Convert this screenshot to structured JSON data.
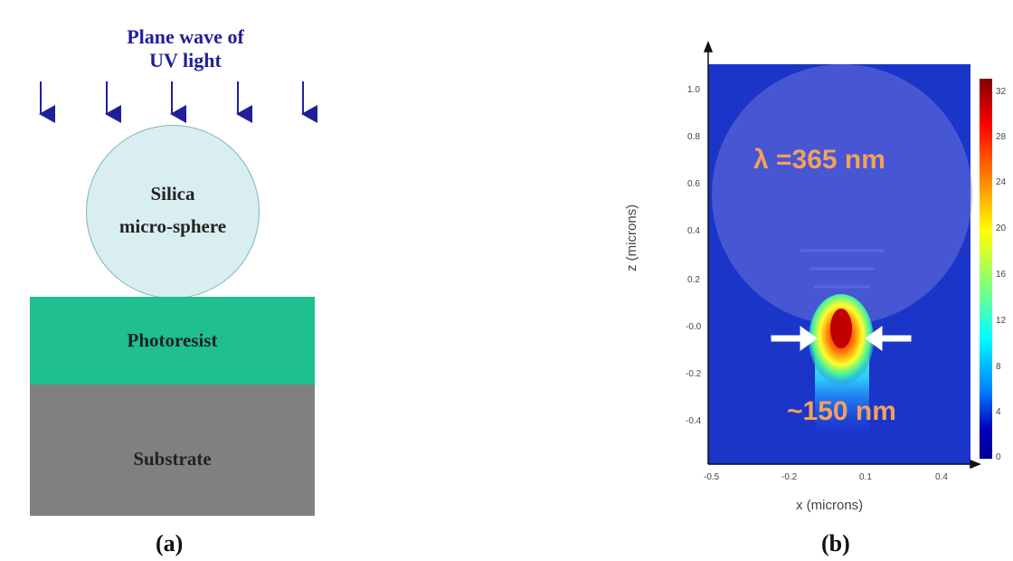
{
  "panel_a": {
    "title_line1": "Plane wave of",
    "title_line2": "UV light",
    "sphere_line1": "Silica",
    "sphere_line2": "micro-sphere",
    "photoresist": "Photoresist",
    "substrate": "Substrate",
    "label": "(a)",
    "colors": {
      "title": "#1f1f9a",
      "sphere": "#d9eef0",
      "photoresist": "#1fbf8f",
      "substrate": "#808080"
    }
  },
  "panel_b": {
    "label": "(b)",
    "wavelength_text": "λ =365 nm",
    "spot_text": "~150 nm",
    "x_axis_label": "x  (microns)",
    "z_axis_label": "z  (microns)",
    "x_ticks": [
      "-0.5",
      "-0.2",
      "0.1",
      "0.4"
    ],
    "z_ticks": [
      "1.0",
      "0.8",
      "0.6",
      "0.4",
      "0.2",
      "-0.0",
      "-0.2",
      "-0.4"
    ],
    "colorbar_ticks": [
      "32",
      "28",
      "24",
      "20",
      "16",
      "12",
      "8",
      "4",
      "0"
    ]
  }
}
